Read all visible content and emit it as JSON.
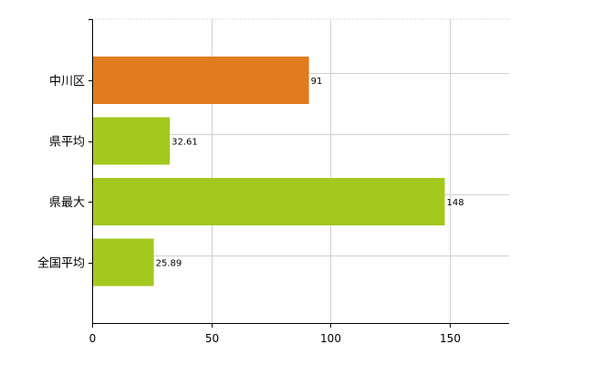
{
  "chart_data": {
    "type": "bar",
    "orientation": "horizontal",
    "title": "",
    "xlabel": "",
    "ylabel": "",
    "categories": [
      "中川区",
      "県平均",
      "県最大",
      "全国平均"
    ],
    "values": [
      91,
      32.61,
      148,
      25.89
    ],
    "value_labels": [
      "91",
      "32.61",
      "148",
      "25.89"
    ],
    "bar_colors": [
      "#e07b1f",
      "#a3c81e",
      "#a3c81e",
      "#a3c81e"
    ],
    "xlim": [
      0,
      175
    ],
    "x_ticks": [
      0,
      50,
      100,
      150
    ],
    "x_tick_labels": [
      "0",
      "50",
      "100",
      "150"
    ],
    "grid": true,
    "legend": "none"
  }
}
